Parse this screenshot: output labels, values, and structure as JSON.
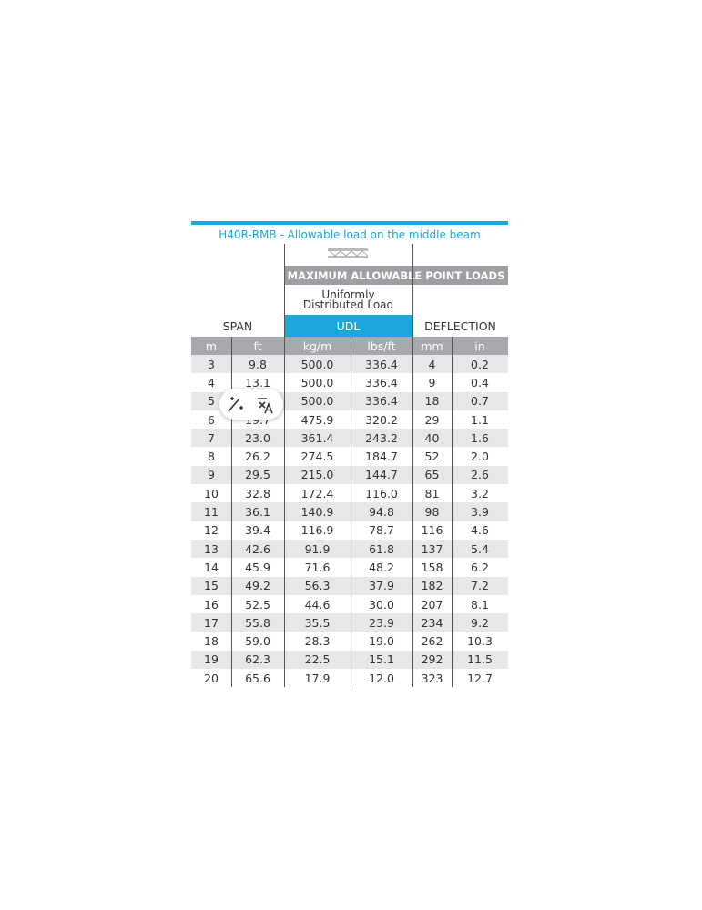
{
  "title": "H40R-RMB - Allowable load on the middle beam",
  "header": {
    "point_loads": "MAXIMUM ALLOWABLE POINT LOADS",
    "udl_description": "Uniformly Distributed Load",
    "span": "SPAN",
    "udl": "UDL",
    "deflection": "DEFLECTION"
  },
  "units": [
    "m",
    "ft",
    "kg/m",
    "lbs/ft",
    "mm",
    "in"
  ],
  "rows": [
    [
      "3",
      "9.8",
      "500.0",
      "336.4",
      "4",
      "0.2"
    ],
    [
      "4",
      "13.1",
      "500.0",
      "336.4",
      "9",
      "0.4"
    ],
    [
      "5",
      null,
      "500.0",
      "336.4",
      "18",
      "0.7"
    ],
    [
      "6",
      "19.7",
      "475.9",
      "320.2",
      "29",
      "1.1"
    ],
    [
      "7",
      "23.0",
      "361.4",
      "243.2",
      "40",
      "1.6"
    ],
    [
      "8",
      "26.2",
      "274.5",
      "184.7",
      "52",
      "2.0"
    ],
    [
      "9",
      "29.5",
      "215.0",
      "144.7",
      "65",
      "2.6"
    ],
    [
      "10",
      "32.8",
      "172.4",
      "116.0",
      "81",
      "3.2"
    ],
    [
      "11",
      "36.1",
      "140.9",
      "94.8",
      "98",
      "3.9"
    ],
    [
      "12",
      "39.4",
      "116.9",
      "78.7",
      "116",
      "4.6"
    ],
    [
      "13",
      "42.6",
      "91.9",
      "61.8",
      "137",
      "5.4"
    ],
    [
      "14",
      "45.9",
      "71.6",
      "48.2",
      "158",
      "6.2"
    ],
    [
      "15",
      "49.2",
      "56.3",
      "37.9",
      "182",
      "7.2"
    ],
    [
      "16",
      "52.5",
      "44.6",
      "30.0",
      "207",
      "8.1"
    ],
    [
      "17",
      "55.8",
      "35.5",
      "23.9",
      "234",
      "9.2"
    ],
    [
      "18",
      "59.0",
      "28.3",
      "19.0",
      "262",
      "10.3"
    ],
    [
      "19",
      "62.3",
      "22.5",
      "15.1",
      "292",
      "11.5"
    ],
    [
      "20",
      "65.6",
      "17.9",
      "12.0",
      "323",
      "12.7"
    ]
  ]
}
